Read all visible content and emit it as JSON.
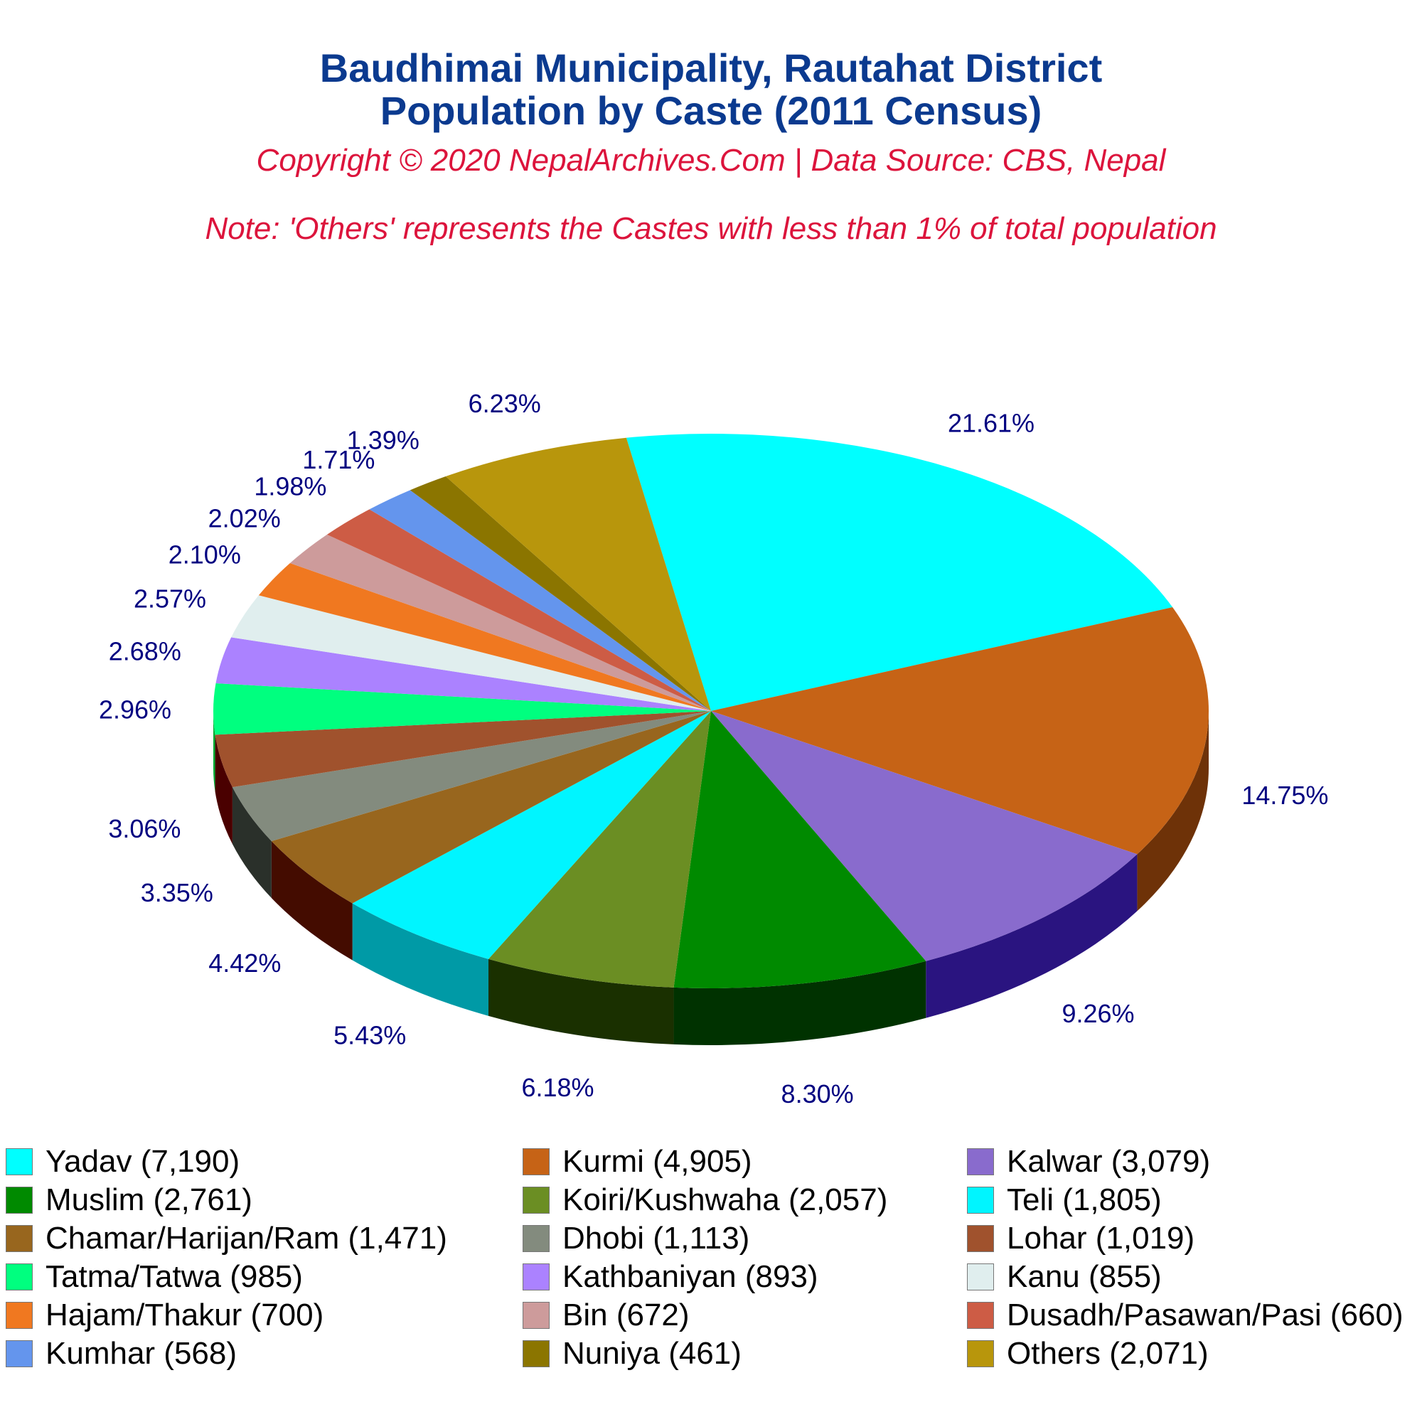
{
  "title_line1": "Baudhimai Municipality, Rautahat District",
  "title_line2": "Population by Caste (2011 Census)",
  "copyright": "Copyright © 2020 NepalArchives.Com | Data Source: CBS, Nepal",
  "note": "Note: 'Others' represents the Castes with less than 1% of total population",
  "chart_data": {
    "type": "pie",
    "title": "Baudhimai Municipality, Rautahat District Population by Caste (2011 Census)",
    "legend_position": "bottom",
    "style": "3d",
    "slices": [
      {
        "label": "Yadav",
        "value": 7190,
        "percent": "21.61%",
        "legend": "Yadav (7,190)",
        "color": "#00ffff",
        "side": "#009aa0"
      },
      {
        "label": "Kurmi",
        "value": 4905,
        "percent": "14.75%",
        "legend": "Kurmi (4,905)",
        "color": "#c66316",
        "side": "#6e3208"
      },
      {
        "label": "Kalwar",
        "value": 3079,
        "percent": "9.26%",
        "legend": "Kalwar (3,079)",
        "color": "#896bcd",
        "side": "#2a1480"
      },
      {
        "label": "Muslim",
        "value": 2761,
        "percent": "8.30%",
        "legend": "Muslim (2,761)",
        "color": "#008a00",
        "side": "#003200"
      },
      {
        "label": "Koiri/Kushwaha",
        "value": 2057,
        "percent": "6.18%",
        "legend": "Koiri/Kushwaha (2,057)",
        "color": "#6b8e23",
        "side": "#1a3000"
      },
      {
        "label": "Teli",
        "value": 1805,
        "percent": "5.43%",
        "legend": "Teli (1,805)",
        "color": "#00f5ff",
        "side": "#009aa6"
      },
      {
        "label": "Chamar/Harijan/Ram",
        "value": 1471,
        "percent": "4.42%",
        "legend": "Chamar/Harijan/Ram (1,471)",
        "color": "#98661e",
        "side": "#440c00"
      },
      {
        "label": "Dhobi",
        "value": 1113,
        "percent": "3.35%",
        "legend": "Dhobi (1,113)",
        "color": "#838b7e",
        "side": "#2a302a"
      },
      {
        "label": "Lohar",
        "value": 1019,
        "percent": "3.06%",
        "legend": "Lohar (1,019)",
        "color": "#a0522d",
        "side": "#4a0000"
      },
      {
        "label": "Tatma/Tatwa",
        "value": 985,
        "percent": "2.96%",
        "legend": "Tatma/Tatwa (985)",
        "color": "#00ff7f",
        "side": "#00aa30"
      },
      {
        "label": "Kathbaniyan",
        "value": 893,
        "percent": "2.68%",
        "legend": "Kathbaniyan (893)",
        "color": "#ab82ff",
        "side": "#5028b0"
      },
      {
        "label": "Kanu",
        "value": 855,
        "percent": "2.57%",
        "legend": "Kanu (855)",
        "color": "#e0eeee",
        "side": "#7a8a8a"
      },
      {
        "label": "Hajam/Thakur",
        "value": 700,
        "percent": "2.10%",
        "legend": "Hajam/Thakur (700)",
        "color": "#f07820",
        "side": "#901e00"
      },
      {
        "label": "Bin",
        "value": 672,
        "percent": "2.02%",
        "legend": "Bin (672)",
        "color": "#cd9b9b",
        "side": "#704848"
      },
      {
        "label": "Dusadh/Pasawan/Pasi",
        "value": 660,
        "percent": "1.98%",
        "legend": "Dusadh/Pasawan/Pasi (660)",
        "color": "#cd5c45",
        "side": "#6a1a10"
      },
      {
        "label": "Kumhar",
        "value": 568,
        "percent": "1.71%",
        "legend": "Kumhar (568)",
        "color": "#6495ed",
        "side": "#203c90"
      },
      {
        "label": "Nuniya",
        "value": 461,
        "percent": "1.39%",
        "legend": "Nuniya (461)",
        "color": "#8b7500",
        "side": "#3a3000"
      },
      {
        "label": "Others",
        "value": 2071,
        "percent": "6.23%",
        "legend": "Others (2,071)",
        "color": "#b8960c",
        "side": "#5a4800"
      }
    ]
  }
}
